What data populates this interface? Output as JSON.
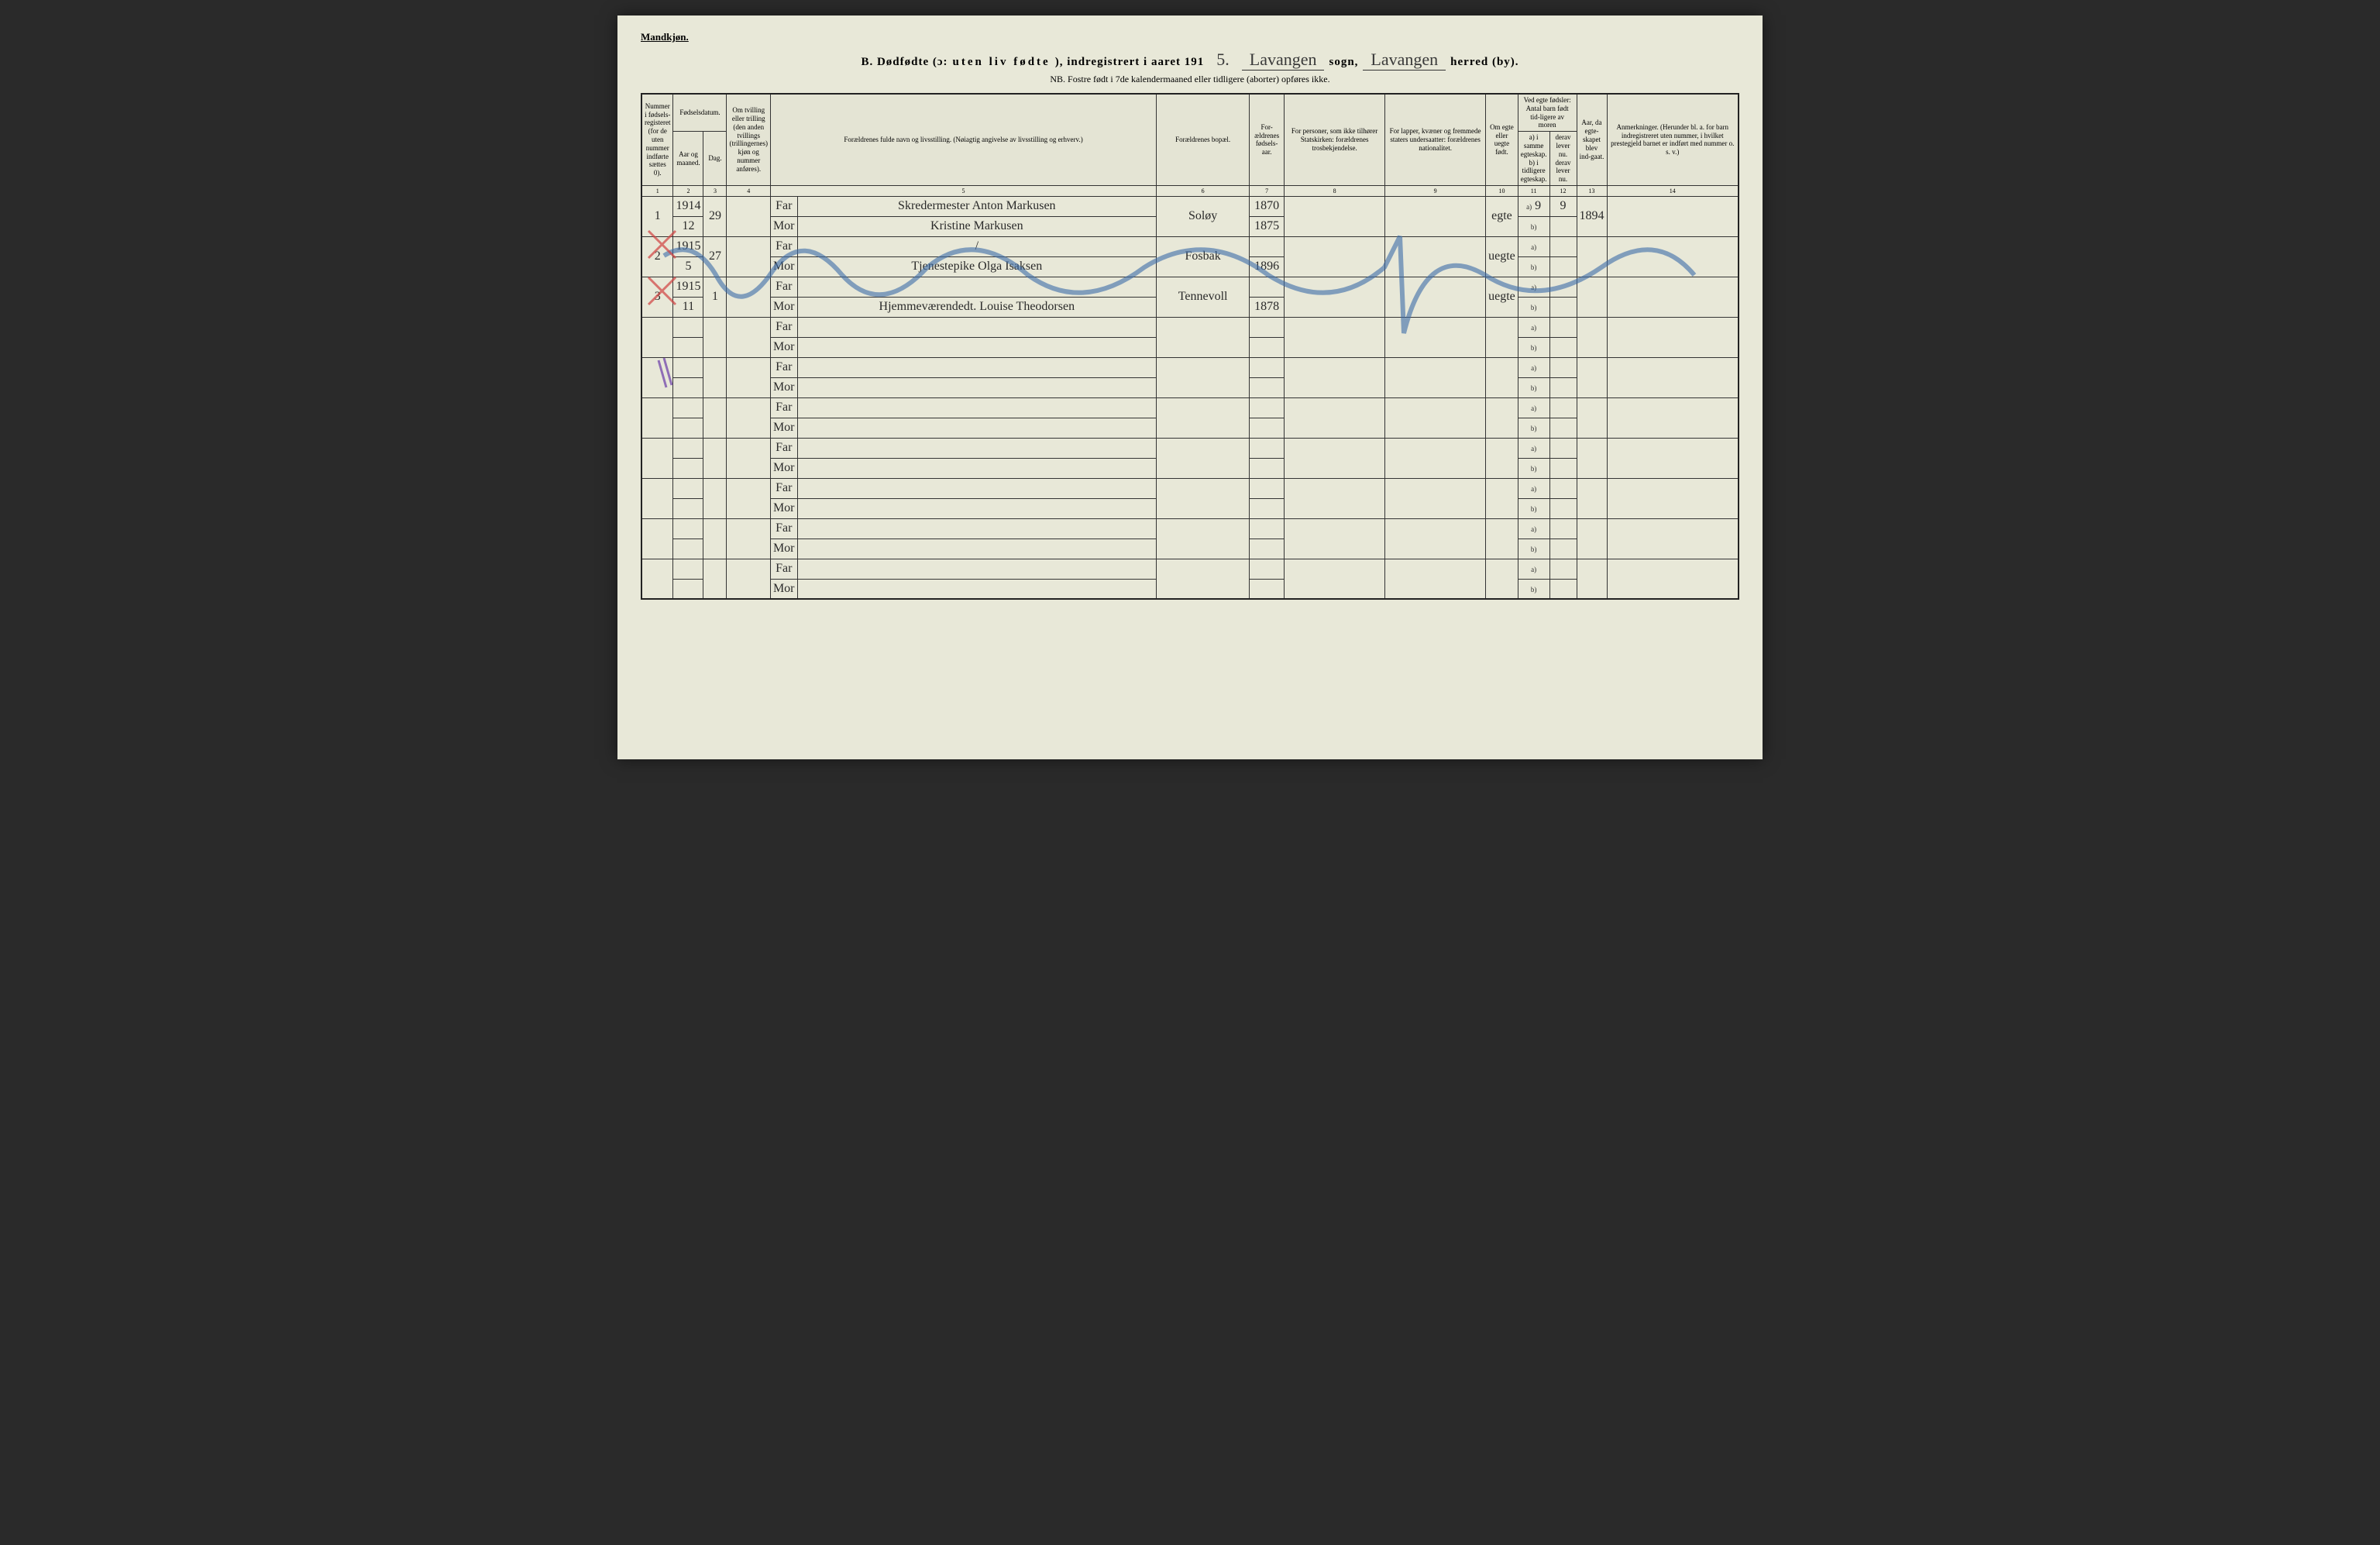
{
  "page": {
    "gender_label": "Mandkjøn.",
    "title_prefix": "B.  Dødfødte (ɔ:",
    "title_uten": "uten liv  fødte",
    "title_reg": "), indregistrert i aaret 191",
    "year_suffix": "5.",
    "sogn_label": "sogn,",
    "parish": "Lavangen",
    "herred_label": "herred (by).",
    "district": "Lavangen",
    "nb_note": "NB.  Fostre født i 7de kalendermaaned eller tidligere (aborter) opføres ikke."
  },
  "columns": {
    "c1": "Nummer i fødsels-registeret (for de uten nummer indførte sættes 0).",
    "c2": "Fødselsdatum.",
    "c2a": "Aar og maaned.",
    "c2b": "Dag.",
    "c3": "Om tvilling eller trilling (den anden tvillings (trillingernes) kjøn og nummer anføres).",
    "c4": "Forældrenes fulde navn og livsstilling.\n(Nøiagtig angivelse av livsstilling og erhverv.)",
    "c5": "Forældrenes bopæl.",
    "c6": "For-ældrenes fødsels-aar.",
    "c7": "For personer, som ikke tilhører Statskirken:\nforældrenes trosbekjendelse.",
    "c8": "For lapper, kvæner og fremmede staters undersaatter:\nforældrenes nationalitet.",
    "c9": "Om egte eller uegte født.",
    "c10": "Ved egte fødsler:\nAntal barn født tid-ligere av moren",
    "c10a": "a) i samme egteskap.",
    "c10b": "b) i tidligere egteskap.",
    "c11a": "derav lever nu.",
    "c11b": "derav lever nu.",
    "c12": "Aar, da egte-skapet blev ind-gaat.",
    "c13": "Anmerkninger.\n(Herunder bl. a. for barn indregistreret uten nummer, i hvilket prestegjeld barnet er indført med nummer o. s. v.)"
  },
  "colnums": [
    "1",
    "2",
    "3",
    "4",
    "5",
    "6",
    "7",
    "8",
    "9",
    "10",
    "11",
    "12",
    "13",
    "14"
  ],
  "entries": [
    {
      "num": "1",
      "year": "1914",
      "month": "12",
      "day": "29",
      "far": "Skredermester Anton Markusen",
      "mor": "Kristine Markusen",
      "bopael": "Soløy",
      "far_year": "1870",
      "mor_year": "1875",
      "egte": "egte",
      "a_val": "9",
      "derav": "9",
      "marriage_year": "1894"
    },
    {
      "num": "2",
      "year": "1915",
      "month": "5",
      "day": "27",
      "far": "/",
      "mor": "Tjenestepike Olga Isaksen",
      "bopael": "Fosbak",
      "far_year": "",
      "mor_year": "1896",
      "egte": "uegte",
      "a_val": "",
      "derav": "",
      "marriage_year": ""
    },
    {
      "num": "3",
      "year": "1915",
      "month": "11",
      "day": "1",
      "far": "",
      "mor": "Hjemmeværendedt. Louise Theodorsen",
      "bopael": "Tennevoll",
      "far_year": "",
      "mor_year": "1878",
      "egte": "uegte",
      "a_val": "",
      "derav": "",
      "marriage_year": ""
    }
  ],
  "labels": {
    "far": "Far",
    "mor": "Mor",
    "a": "a)",
    "b": "b)"
  },
  "style": {
    "page_bg": "#e8e8d8",
    "ink": "#2a2a2a",
    "blue_pencil": "#3a6aa8",
    "red_pencil": "#d04040",
    "purple_pencil": "#6a3aa8",
    "border": "#222222"
  }
}
